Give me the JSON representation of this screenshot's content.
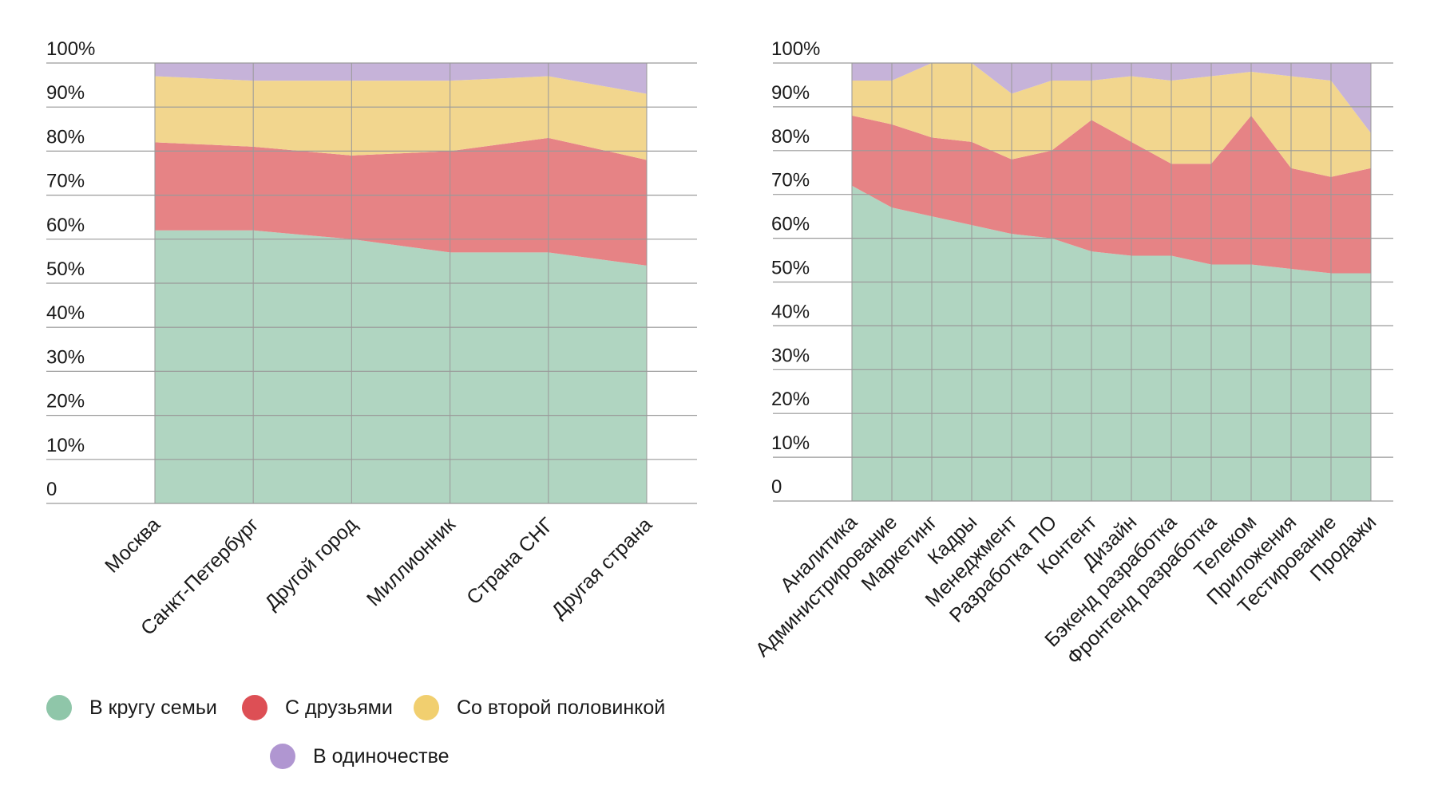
{
  "colors": {
    "family": "#b0d5c1",
    "friends": "#e68385",
    "partner": "#f2d68e",
    "alone": "#c6b3d9",
    "grid": "#9a9a9a"
  },
  "legend": [
    {
      "name": "В кругу семьи",
      "swatch": "#8fc6a9"
    },
    {
      "name": "С друзьями",
      "swatch": "#dd4f55"
    },
    {
      "name": "Со второй половинкой",
      "swatch": "#f1cf6f"
    },
    {
      "name": "В одиночестве",
      "swatch": "#b096d1"
    }
  ],
  "chart_data": [
    {
      "type": "area",
      "stacked": true,
      "y_ticks": [
        "0",
        "10%",
        "20%",
        "30%",
        "40%",
        "50%",
        "60%",
        "70%",
        "80%",
        "90%",
        "100%"
      ],
      "ylim": [
        0,
        100
      ],
      "grid": true,
      "legend_position": "bottom",
      "categories": [
        "Москва",
        "Санкт-Петербург",
        "Другой город",
        "Миллионник",
        "Страна СНГ",
        "Другая страна"
      ],
      "series": [
        {
          "name": "В кругу семьи",
          "values": [
            62,
            62,
            60,
            57,
            57,
            54
          ]
        },
        {
          "name": "С друзьями",
          "values": [
            20,
            19,
            19,
            23,
            26,
            24
          ]
        },
        {
          "name": "Со второй половинкой",
          "values": [
            15,
            15,
            17,
            16,
            14,
            15
          ]
        },
        {
          "name": "В одиночестве",
          "values": [
            3,
            4,
            4,
            4,
            3,
            7
          ]
        }
      ]
    },
    {
      "type": "area",
      "stacked": true,
      "y_ticks": [
        "0",
        "10%",
        "20%",
        "30%",
        "40%",
        "50%",
        "60%",
        "70%",
        "80%",
        "90%",
        "100%"
      ],
      "ylim": [
        0,
        100
      ],
      "grid": true,
      "categories": [
        "Аналитика",
        "Администрирование",
        "Маркетинг",
        "Кадры",
        "Менеджмент",
        "Разработка ПО",
        "Контент",
        "Дизайн",
        "Бэкенд разработка",
        "Фронтенд разработка",
        "Телеком",
        "Приложения",
        "Тестирование",
        "Продажи"
      ],
      "series": [
        {
          "name": "В кругу семьи",
          "values": [
            72,
            67,
            65,
            63,
            61,
            60,
            57,
            56,
            56,
            54,
            54,
            53,
            52,
            52
          ]
        },
        {
          "name": "С друзьями",
          "values": [
            16,
            19,
            18,
            19,
            17,
            20,
            30,
            26,
            21,
            23,
            34,
            23,
            22,
            24
          ]
        },
        {
          "name": "Со второй половинкой",
          "values": [
            8,
            10,
            17,
            18,
            15,
            16,
            9,
            15,
            19,
            20,
            10,
            21,
            22,
            8
          ]
        },
        {
          "name": "В одиночестве",
          "values": [
            4,
            4,
            0,
            0,
            7,
            4,
            4,
            3,
            4,
            3,
            2,
            3,
            4,
            16
          ]
        }
      ]
    }
  ]
}
